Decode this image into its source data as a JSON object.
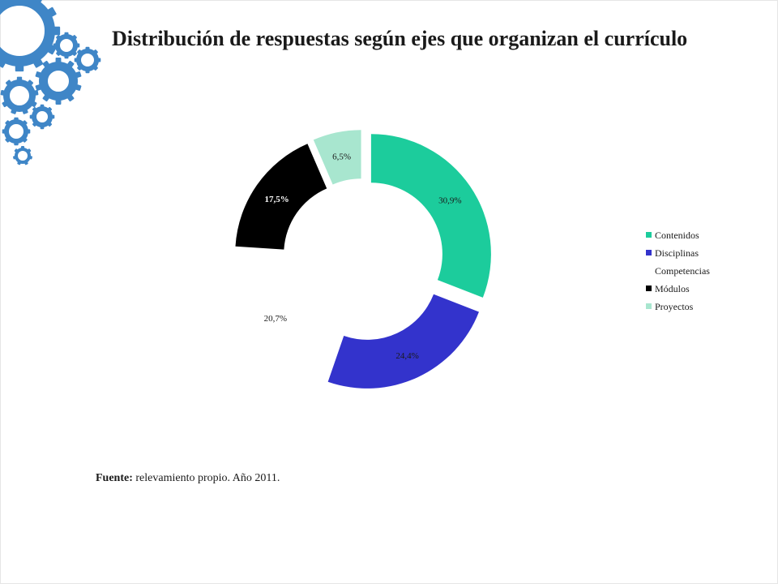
{
  "slide": {
    "title": "Distribución de respuestas según ejes que organizan el currículo",
    "source_label": "Fuente:",
    "source_text": " relevamiento propio. Año 2011."
  },
  "decoration": {
    "icon": "gears-icon",
    "color": "#3f86c7"
  },
  "chart_data": {
    "type": "pie",
    "variant": "doughnut-exploded",
    "title": "",
    "categories": [
      "Contenidos",
      "Disciplinas",
      "Competencias",
      "Módulos",
      "Proyectos"
    ],
    "values": [
      30.9,
      24.4,
      20.7,
      17.5,
      6.5
    ],
    "labels": [
      "30,9%",
      "24,4%",
      "20,7%",
      "17,5%",
      "6,5%"
    ],
    "colors": [
      "#1ccc9c",
      "#3333cc",
      "#ffffff",
      "#000000",
      "#a8e6cf"
    ],
    "label_colors": [
      "#1a1a1a",
      "#1a1a1a",
      "#1a1a1a",
      "#ffffff",
      "#1a1a1a"
    ],
    "legend": {
      "position": "right"
    }
  }
}
